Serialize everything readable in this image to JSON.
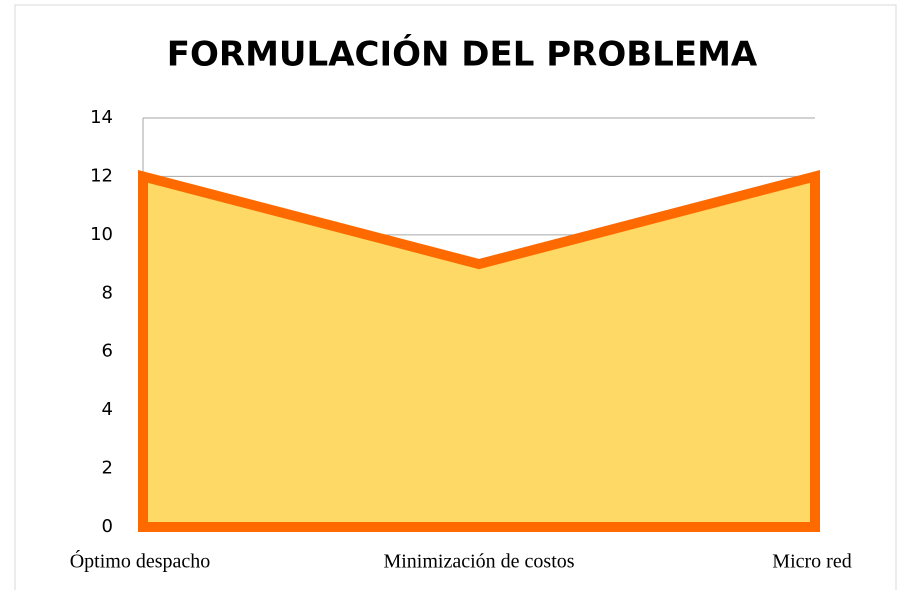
{
  "chart_data": {
    "type": "area",
    "title": "FORMULACIÓN DEL PROBLEMA",
    "categories": [
      "Óptimo despacho",
      "Minimización de costos",
      "Micro red"
    ],
    "values": [
      12,
      9,
      12
    ],
    "color": "#ffd966",
    "line_color": "#ff6a00",
    "ylim": [
      0,
      14
    ],
    "yticks": [
      0,
      2,
      4,
      6,
      8,
      10,
      12,
      14
    ],
    "grid": true
  }
}
